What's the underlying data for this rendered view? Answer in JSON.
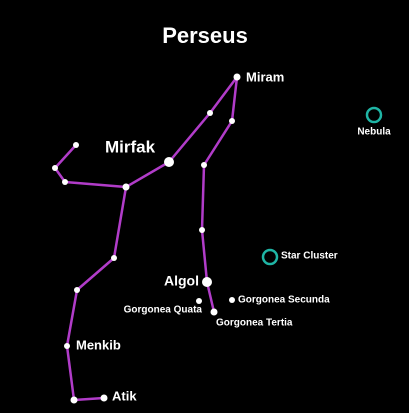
{
  "title": "Perseus",
  "stars": [
    {
      "label": "Miram"
    },
    {
      "label": "Mirfak"
    },
    {
      "label": "Algol"
    },
    {
      "label": "Gorgonea Quata"
    },
    {
      "label": "Gorgonea Secunda"
    },
    {
      "label": "Gorgonea Tertia"
    },
    {
      "label": "Menkib"
    },
    {
      "label": "Atik"
    }
  ],
  "objects": [
    {
      "label": "Nebula"
    },
    {
      "label": "Star Cluster"
    }
  ]
}
